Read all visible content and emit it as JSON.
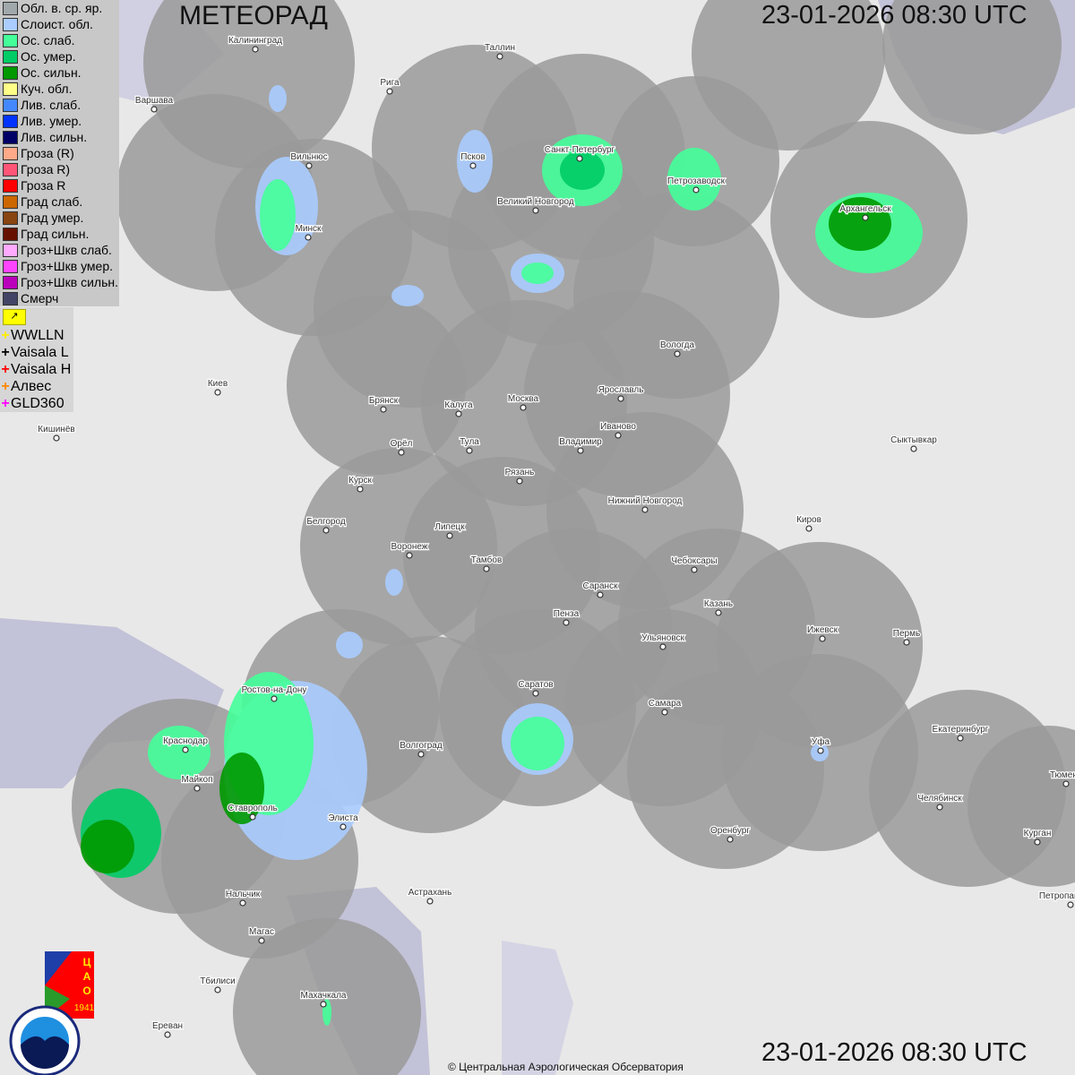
{
  "header": {
    "title": "МЕТЕОРАД",
    "timestamp_top": "23-01-2026  08:30 UTC",
    "timestamp_bottom": "23-01-2026  08:30 UTC"
  },
  "legend": [
    {
      "label": "Обл. в. ср. яр.",
      "color": "#a0a8ac"
    },
    {
      "label": "Слоист. обл.",
      "color": "#aaccff"
    },
    {
      "label": "Ос. слаб.",
      "color": "#44ff99"
    },
    {
      "label": "Ос. умер.",
      "color": "#00cc66"
    },
    {
      "label": "Ос. сильн.",
      "color": "#009900"
    },
    {
      "label": "Куч. обл.",
      "color": "#ffff88"
    },
    {
      "label": "Лив. слаб.",
      "color": "#4488ff"
    },
    {
      "label": "Лив. умер.",
      "color": "#0033ff"
    },
    {
      "label": "Лив. сильн.",
      "color": "#000066"
    },
    {
      "label": "Гроза (R)",
      "color": "#ffaa88"
    },
    {
      "label": "Гроза R)",
      "color": "#ff5577"
    },
    {
      "label": "Гроза R",
      "color": "#ff0000"
    },
    {
      "label": "Град слаб.",
      "color": "#cc6600"
    },
    {
      "label": "Град умер.",
      "color": "#884411"
    },
    {
      "label": "Град сильн.",
      "color": "#661100"
    },
    {
      "label": "Гроз+Шкв слаб.",
      "color": "#ffaaff"
    },
    {
      "label": "Гроз+Шкв умер.",
      "color": "#ff44ff"
    },
    {
      "label": "Гроз+Шкв сильн.",
      "color": "#bb00bb"
    },
    {
      "label": "Смерч",
      "color": "#444466"
    }
  ],
  "lightning": {
    "flag_icon": "lightning-flag-icon",
    "sources": [
      {
        "label": "WWLLN",
        "color": "#ffee00"
      },
      {
        "label": "Vaisala L",
        "color": "#000000"
      },
      {
        "label": "Vaisala H",
        "color": "#ff0000"
      },
      {
        "label": "Алвес",
        "color": "#ff8800"
      },
      {
        "label": "GLD360",
        "color": "#ff00ff"
      }
    ]
  },
  "cities": [
    "Калининград",
    "Таллин",
    "Рига",
    "Варшава",
    "Вильнюс",
    "Псков",
    "Санкт-Петербург",
    "Петрозаводск",
    "Архангельск",
    "Великий Новгород",
    "Минск",
    "Вологда",
    "Киев",
    "Брянск",
    "Калуга",
    "Москва",
    "Ярославль",
    "Иваново",
    "Кишинёв",
    "Орёл",
    "Тула",
    "Владимир",
    "Сыктывкар",
    "Рязань",
    "Курск",
    "Нижний Новгород",
    "Белгород",
    "Киров",
    "Липецк",
    "Воронеж",
    "Тамбов",
    "Чебоксары",
    "Саранск",
    "Казань",
    "Пенза",
    "Ижевск",
    "Пермь",
    "Ульяновск",
    "Саратов",
    "Ростов-на-Дону",
    "Самара",
    "Екатеринбург",
    "Краснодар",
    "Волгоград",
    "Уфа",
    "Тюмень",
    "Майкоп",
    "Челябинск",
    "Ставрополь",
    "Элиста",
    "Оренбург",
    "Курган",
    "Нальчик",
    "Астрахань",
    "Петропавловск",
    "Магас",
    "Тбилиси",
    "Махачкала",
    "Ереван"
  ],
  "logos": {
    "tsao": "ЦАО 1941",
    "roshydromet": "РОСГИДРОМЕТ ROSHYDROMET"
  },
  "footer": {
    "copyright": "© Центральная Аэрологическая Обсерватория"
  }
}
